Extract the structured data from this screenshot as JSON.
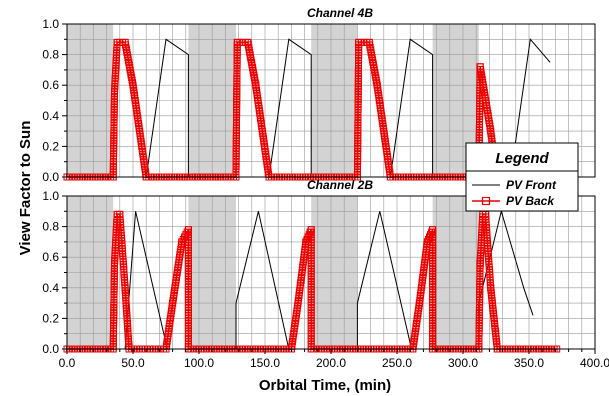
{
  "chart_data": {
    "type": "line",
    "xlabel": "Orbital Time, (min)",
    "ylabel": "View Factor to Sun",
    "xlim": [
      0,
      400
    ],
    "ylim": [
      0,
      1
    ],
    "x_ticks": [
      "0.0",
      "50.0",
      "100.0",
      "150.0",
      "200.0",
      "250.0",
      "300.0",
      "350.0",
      "400.0"
    ],
    "y_ticks": [
      "0.0",
      "0.2",
      "0.4",
      "0.6",
      "0.8",
      "1.0"
    ],
    "legend": {
      "title": "Legend",
      "placement": "right",
      "entries": [
        {
          "label": "PV Front",
          "color": "#000000",
          "marker": "none"
        },
        {
          "label": "PV Back",
          "color": "#ee0000",
          "marker": "square"
        }
      ]
    },
    "colors": {
      "front": "#000000",
      "back": "#ee0000",
      "eclipse": "#d3d3d3"
    },
    "panels": [
      {
        "title": "Channel 4B",
        "eclipse_bands": [
          [
            0,
            35
          ],
          [
            92,
            128
          ],
          [
            185,
            220
          ],
          [
            277,
            312
          ]
        ],
        "series": [
          {
            "name": "PV Front",
            "segments": [
              [
                [
                  60,
                  0
                ],
                [
                  75,
                  0.9
                ],
                [
                  92,
                  0.8
                ],
                [
                  92,
                  0
                ]
              ],
              [
                [
                  153,
                  0
                ],
                [
                  168,
                  0.9
                ],
                [
                  185,
                  0.8
                ],
                [
                  185,
                  0
                ]
              ],
              [
                [
                  245,
                  0
                ],
                [
                  260,
                  0.9
                ],
                [
                  277,
                  0.8
                ],
                [
                  277,
                  0
                ]
              ],
              [
                [
                  336,
                  0
                ],
                [
                  351,
                  0.9
                ],
                [
                  366,
                  0.75
                ]
              ]
            ]
          },
          {
            "name": "PV Back",
            "segments": [
              [
                [
                  0,
                  0
                ],
                [
                  35,
                  0
                ]
              ],
              [
                [
                  35,
                  0
                ],
                [
                  36,
                  0.56
                ],
                [
                  38,
                  0.88
                ],
                [
                  44,
                  0.88
                ],
                [
                  50,
                  0.6
                ],
                [
                  60,
                  0
                ],
                [
                  128,
                  0
                ]
              ],
              [
                [
                  128,
                  0
                ],
                [
                  129,
                  0.88
                ],
                [
                  137,
                  0.88
                ],
                [
                  143,
                  0.6
                ],
                [
                  153,
                  0
                ],
                [
                  220,
                  0
                ]
              ],
              [
                [
                  220,
                  0
                ],
                [
                  221,
                  0.88
                ],
                [
                  229,
                  0.88
                ],
                [
                  235,
                  0.6
                ],
                [
                  245,
                  0
                ],
                [
                  312,
                  0
                ]
              ],
              [
                [
                  312,
                  0
                ],
                [
                  313,
                  0.72
                ],
                [
                  321,
                  0.3
                ],
                [
                  325,
                  0.02
                ],
                [
                  326,
                  0
                ]
              ]
            ]
          }
        ]
      },
      {
        "title": "Channel 2B",
        "eclipse_bands": [
          [
            0,
            35
          ],
          [
            92,
            128
          ],
          [
            185,
            220
          ],
          [
            277,
            312
          ]
        ],
        "series": [
          {
            "name": "PV Front",
            "segments": [
              [
                [
                  44,
                  0
                ],
                [
                  52,
                  0.9
                ],
                [
                  76,
                  0
                ]
              ],
              [
                [
                  128,
                  0
                ],
                [
                  128,
                  0.3
                ],
                [
                  145,
                  0.9
                ],
                [
                  168,
                  0
                ]
              ],
              [
                [
                  220,
                  0
                ],
                [
                  220,
                  0.3
                ],
                [
                  237,
                  0.9
                ],
                [
                  261,
                  0
                ]
              ],
              [
                [
                  312,
                  0
                ],
                [
                  312,
                  0.3
                ],
                [
                  329,
                  0.9
                ],
                [
                  346,
                  0.4
                ],
                [
                  353,
                  0.22
                ]
              ]
            ]
          },
          {
            "name": "PV Back",
            "segments": [
              [
                [
                  0,
                  0
                ],
                [
                  35,
                  0
                ]
              ],
              [
                [
                  35,
                  0
                ],
                [
                  36,
                  0.56
                ],
                [
                  38,
                  0.88
                ],
                [
                  40,
                  0.88
                ],
                [
                  44,
                  0.4
                ],
                [
                  47,
                  0
                ],
                [
                  75,
                  0
                ]
              ],
              [
                [
                  75,
                  0
                ],
                [
                  80,
                  0.3
                ],
                [
                  87,
                  0.7
                ],
                [
                  92,
                  0.78
                ],
                [
                  92,
                  0
                ],
                [
                  170,
                  0
                ]
              ],
              [
                [
                  170,
                  0
                ],
                [
                  175,
                  0.3
                ],
                [
                  181,
                  0.7
                ],
                [
                  185,
                  0.78
                ],
                [
                  185,
                  0
                ],
                [
                  262,
                  0
                ]
              ],
              [
                [
                  262,
                  0
                ],
                [
                  267,
                  0.3
                ],
                [
                  273,
                  0.7
                ],
                [
                  277,
                  0.78
                ],
                [
                  277,
                  0
                ],
                [
                  312,
                  0
                ]
              ],
              [
                [
                  312,
                  0
                ],
                [
                  313,
                  0.56
                ],
                [
                  315,
                  0.88
                ],
                [
                  317,
                  0.88
                ],
                [
                  321,
                  0.4
                ],
                [
                  326,
                  0
                ],
                [
                  371,
                  0
                ]
              ]
            ]
          }
        ]
      }
    ]
  }
}
